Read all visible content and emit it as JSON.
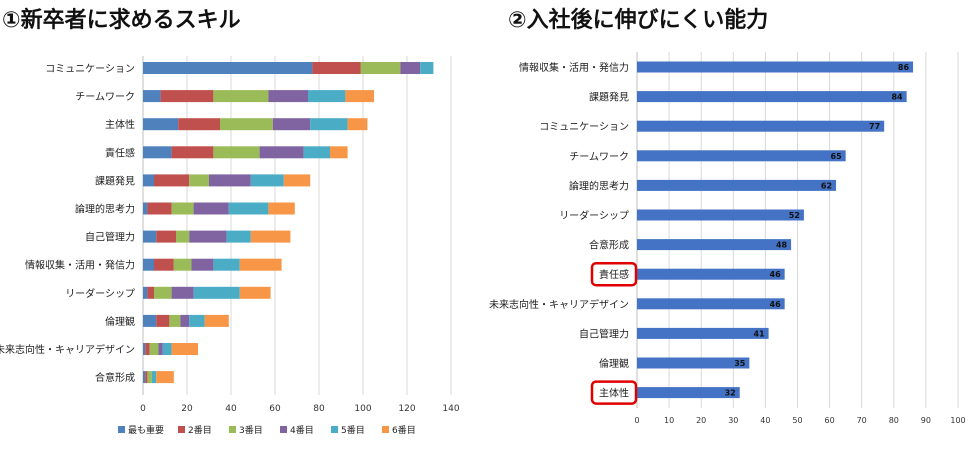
{
  "titles": {
    "left": "①新卒者に求めるスキル",
    "right": "②入社後に伸びにくい能力"
  },
  "chart_data": [
    {
      "type": "bar",
      "orientation": "horizontal",
      "stacked": true,
      "title": "①新卒者に求めるスキル",
      "categories": [
        "コミュニケーション",
        "チームワーク",
        "主体性",
        "責任感",
        "課題発見",
        "論理的思考力",
        "自己管理力",
        "情報収集・活用・発信力",
        "リーダーシップ",
        "倫理観",
        "未来志向性・キャリアデザイン",
        "合意形成"
      ],
      "xlim": [
        0,
        140
      ],
      "xticks": [
        0,
        20,
        40,
        60,
        80,
        100,
        120,
        140
      ],
      "grid": true,
      "legend_position": "bottom",
      "series": [
        {
          "name": "最も重要",
          "color": "#4f81bd",
          "values": [
            77,
            8,
            16,
            13,
            5,
            2,
            6,
            5,
            2,
            6,
            1,
            1
          ]
        },
        {
          "name": "2番目",
          "color": "#c0504d",
          "values": [
            22,
            24,
            19,
            19,
            16,
            11,
            9,
            9,
            3,
            6,
            2,
            1
          ]
        },
        {
          "name": "3番目",
          "color": "#9bbb59",
          "values": [
            18,
            25,
            24,
            21,
            9,
            10,
            6,
            8,
            8,
            5,
            4,
            2
          ]
        },
        {
          "name": "4番目",
          "color": "#8064a2",
          "values": [
            9,
            18,
            17,
            20,
            19,
            16,
            17,
            10,
            10,
            4,
            2,
            0
          ]
        },
        {
          "name": "5番目",
          "color": "#4bacc6",
          "values": [
            6,
            17,
            17,
            12,
            15,
            18,
            11,
            12,
            21,
            7,
            4,
            2
          ]
        },
        {
          "name": "6番目",
          "color": "#f79646",
          "values": [
            0,
            13,
            9,
            8,
            12,
            12,
            18,
            19,
            14,
            11,
            12,
            8
          ]
        }
      ]
    },
    {
      "type": "bar",
      "orientation": "horizontal",
      "title": "②入社後に伸びにくい能力",
      "categories": [
        "情報収集・活用・発信力",
        "課題発見",
        "コミュニケーション",
        "チームワーク",
        "論理的思考力",
        "リーダーシップ",
        "合意形成",
        "責任感",
        "未来志向性・キャリアデザイン",
        "自己管理力",
        "倫理観",
        "主体性"
      ],
      "values": [
        86,
        84,
        77,
        65,
        62,
        52,
        48,
        46,
        46,
        41,
        35,
        32
      ],
      "xlim": [
        0,
        100
      ],
      "xticks": [
        0,
        10,
        20,
        30,
        40,
        50,
        60,
        70,
        80,
        90,
        100
      ],
      "grid": true,
      "color": "#4472c4",
      "highlighted": [
        "責任感",
        "主体性"
      ],
      "highlight_color": "#e00000"
    }
  ]
}
